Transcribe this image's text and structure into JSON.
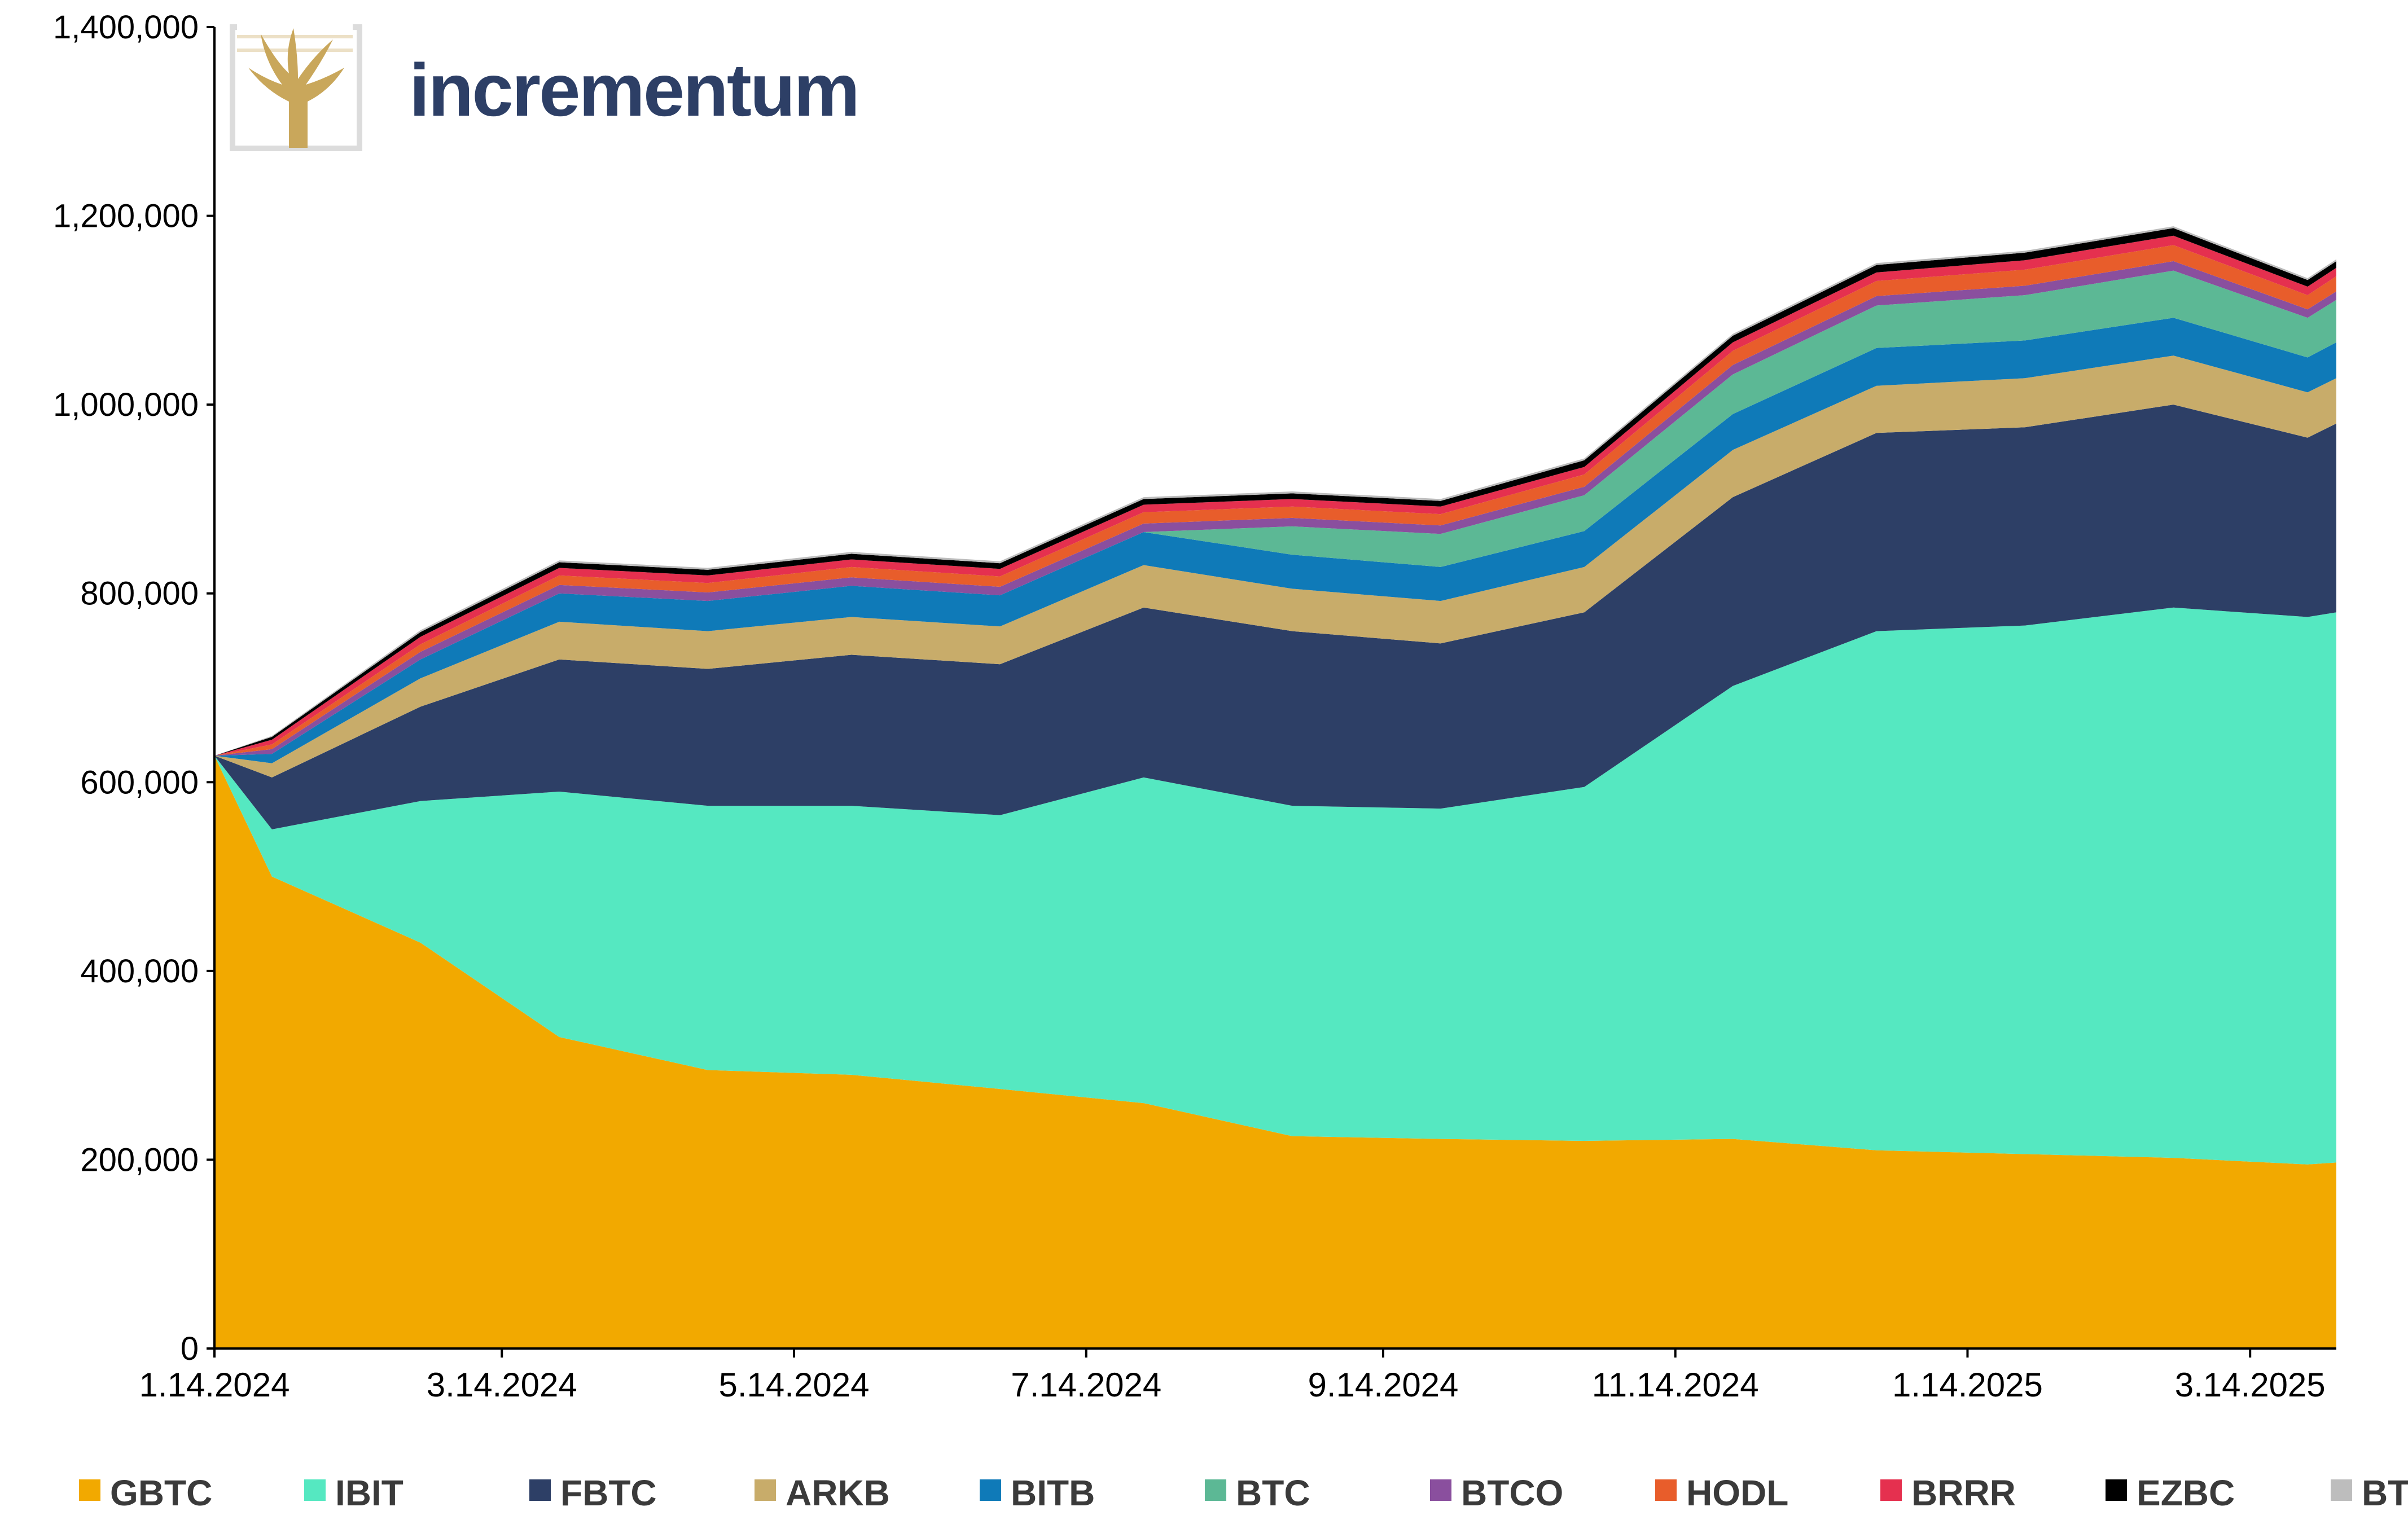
{
  "brand": {
    "name": "incrementum"
  },
  "chart_data": {
    "type": "area",
    "stacked": true,
    "title": "",
    "xlabel": "",
    "ylabel": "",
    "ylim": [
      0,
      1400000
    ],
    "xlim": [
      "2024-01-14",
      "2025-04-01"
    ],
    "yticks": [
      0,
      200000,
      400000,
      600000,
      800000,
      1000000,
      1200000,
      1400000
    ],
    "ytick_labels": [
      "0",
      "200,000",
      "400,000",
      "600,000",
      "800,000",
      "1,000,000",
      "1,200,000",
      "1,400,000"
    ],
    "xticks": [
      "2024-01-14",
      "2024-03-14",
      "2024-05-14",
      "2024-07-14",
      "2024-09-14",
      "2024-11-14",
      "2025-01-14",
      "2025-03-14"
    ],
    "xtick_labels": [
      "1.14.2024",
      "3.14.2024",
      "5.14.2024",
      "7.14.2024",
      "9.14.2024",
      "11.14.2024",
      "1.14.2025",
      "3.14.2025"
    ],
    "legend_position": "bottom",
    "x": [
      "2024-01-11",
      "2024-01-26",
      "2024-02-26",
      "2024-03-26",
      "2024-04-26",
      "2024-05-26",
      "2024-06-26",
      "2024-07-26",
      "2024-08-26",
      "2024-09-26",
      "2024-10-26",
      "2024-11-26",
      "2024-12-26",
      "2025-01-26",
      "2025-02-26",
      "2025-03-26",
      "2025-04-01"
    ],
    "series": [
      {
        "name": "GBTC",
        "color": "#f2a900",
        "values": [
          628000,
          500000,
          430000,
          330000,
          295000,
          290000,
          275000,
          260000,
          225000,
          222000,
          220000,
          222000,
          210000,
          206000,
          202000,
          195000,
          197000
        ]
      },
      {
        "name": "IBIT",
        "color": "#55e8c1",
        "values": [
          0,
          50000,
          150000,
          260000,
          280000,
          285000,
          290000,
          345000,
          350000,
          350000,
          375000,
          480000,
          550000,
          560000,
          583000,
          580000,
          583000
        ]
      },
      {
        "name": "FBTC",
        "color": "#2d3f66",
        "values": [
          0,
          55000,
          100000,
          140000,
          145000,
          160000,
          160000,
          180000,
          185000,
          175000,
          185000,
          200000,
          210000,
          210000,
          215000,
          190000,
          200000
        ]
      },
      {
        "name": "ARKB",
        "color": "#c8ac6a",
        "values": [
          0,
          15000,
          30000,
          40000,
          40000,
          40000,
          40000,
          45000,
          45000,
          45000,
          48000,
          50000,
          50000,
          52000,
          52000,
          48000,
          48000
        ]
      },
      {
        "name": "BITB",
        "color": "#0f7ab8",
        "values": [
          0,
          10000,
          20000,
          30000,
          32000,
          33000,
          33000,
          35000,
          36000,
          36000,
          38000,
          38000,
          40000,
          40000,
          40000,
          37000,
          38000
        ]
      },
      {
        "name": "BTC",
        "color": "#5cb895",
        "values": [
          0,
          0,
          0,
          0,
          0,
          0,
          0,
          0,
          30000,
          35000,
          38000,
          42000,
          45000,
          48000,
          50000,
          42000,
          45000
        ]
      },
      {
        "name": "BTCO",
        "color": "#8a4f9e",
        "values": [
          0,
          5000,
          8000,
          9000,
          9000,
          9000,
          9000,
          9000,
          9000,
          9000,
          9000,
          10000,
          10000,
          10000,
          10000,
          9000,
          9000
        ]
      },
      {
        "name": "HODL",
        "color": "#e85d2b",
        "values": [
          0,
          5000,
          8000,
          10000,
          10000,
          11000,
          11000,
          12000,
          12000,
          12000,
          13000,
          15000,
          16000,
          17000,
          17000,
          15000,
          16000
        ]
      },
      {
        "name": "BRRR",
        "color": "#e5304f",
        "values": [
          0,
          5000,
          8000,
          8000,
          8000,
          8000,
          8000,
          8000,
          8000,
          8000,
          8000,
          9000,
          9000,
          10000,
          10000,
          9000,
          9000
        ]
      },
      {
        "name": "EZBC",
        "color": "#000000",
        "values": [
          0,
          3000,
          5000,
          6000,
          6000,
          6000,
          6000,
          6000,
          6000,
          6000,
          7000,
          7000,
          8000,
          8000,
          8000,
          7000,
          7000
        ]
      },
      {
        "name": "BTCW",
        "color": "#bdbdbd",
        "values": [
          0,
          1000,
          2000,
          2000,
          2000,
          2000,
          2000,
          2000,
          2000,
          2000,
          2000,
          2000,
          2000,
          2000,
          2000,
          2000,
          2000
        ]
      }
    ]
  }
}
